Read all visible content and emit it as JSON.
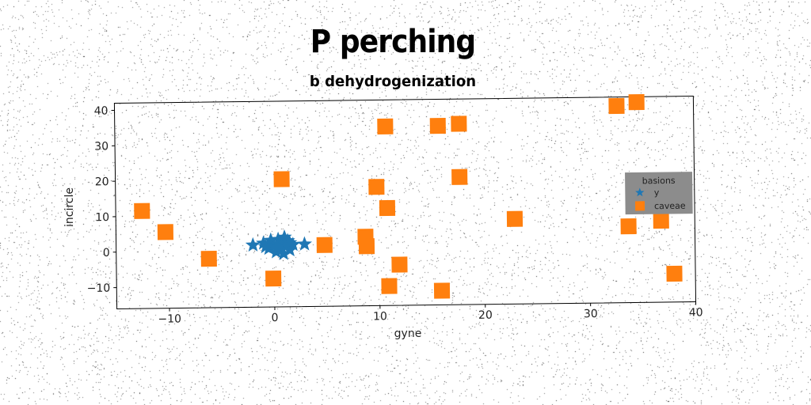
{
  "chart_data": {
    "type": "scatter",
    "title": "P perching",
    "subtitle": "b dehydrogenization",
    "xlabel": "gyne",
    "ylabel": "incircle",
    "xlim": [
      -15,
      40
    ],
    "ylim": [
      -16,
      42
    ],
    "xticks": [
      -10,
      0,
      10,
      20,
      30,
      40
    ],
    "yticks": [
      -10,
      0,
      10,
      20,
      30,
      40
    ],
    "grid": false,
    "legend": {
      "title": "basions",
      "placement": "right",
      "background": "#8c8c8c"
    },
    "series": [
      {
        "name": "y",
        "marker": "star",
        "color": "#1f77b4",
        "points": [
          {
            "x": -2.0,
            "y": 1.5
          },
          {
            "x": -1.0,
            "y": 2.0
          },
          {
            "x": -0.5,
            "y": 0.5
          },
          {
            "x": -0.3,
            "y": 2.8
          },
          {
            "x": 0.0,
            "y": 1.2
          },
          {
            "x": 0.2,
            "y": -0.5
          },
          {
            "x": 0.4,
            "y": 3.0
          },
          {
            "x": 0.5,
            "y": 1.8
          },
          {
            "x": 0.6,
            "y": 0.3
          },
          {
            "x": 0.8,
            "y": 2.3
          },
          {
            "x": 0.9,
            "y": -1.0
          },
          {
            "x": 1.0,
            "y": 3.6
          },
          {
            "x": 1.1,
            "y": 1.0
          },
          {
            "x": 1.3,
            "y": 2.6
          },
          {
            "x": 1.5,
            "y": 0.0
          },
          {
            "x": 1.5,
            "y": 2.0
          },
          {
            "x": 1.8,
            "y": 1.5
          },
          {
            "x": 0.3,
            "y": 0.8
          },
          {
            "x": -0.8,
            "y": 1.0
          },
          {
            "x": 2.9,
            "y": 1.6
          }
        ]
      },
      {
        "name": "caveae",
        "marker": "square",
        "color": "#ff7f0e",
        "points": [
          {
            "x": -12.5,
            "y": 11.5
          },
          {
            "x": -10.3,
            "y": 5.5
          },
          {
            "x": -6.2,
            "y": -2.2
          },
          {
            "x": -0.1,
            "y": -8.0
          },
          {
            "x": 0.8,
            "y": 20.0
          },
          {
            "x": 4.8,
            "y": 1.3
          },
          {
            "x": 8.7,
            "y": 3.5
          },
          {
            "x": 8.8,
            "y": 0.8
          },
          {
            "x": 9.8,
            "y": 17.5
          },
          {
            "x": 10.7,
            "y": 34.5
          },
          {
            "x": 10.8,
            "y": 11.5
          },
          {
            "x": 10.9,
            "y": -10.5
          },
          {
            "x": 11.9,
            "y": -4.5
          },
          {
            "x": 15.7,
            "y": 34.5
          },
          {
            "x": 15.9,
            "y": -12.0
          },
          {
            "x": 17.7,
            "y": 35.0
          },
          {
            "x": 17.7,
            "y": 20.0
          },
          {
            "x": 22.9,
            "y": 8.0
          },
          {
            "x": 32.7,
            "y": 39.5
          },
          {
            "x": 34.6,
            "y": 40.5
          },
          {
            "x": 33.7,
            "y": 5.5
          },
          {
            "x": 36.8,
            "y": 7.0
          },
          {
            "x": 38.0,
            "y": -8.0
          }
        ]
      }
    ]
  }
}
